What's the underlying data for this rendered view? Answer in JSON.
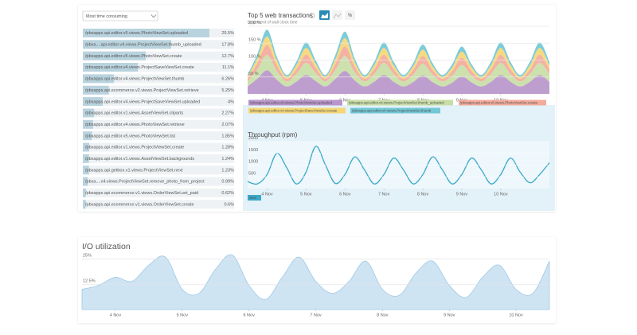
{
  "dropdown": "Most time consuming",
  "transactions": {
    "names": [
      "/pbxapps.api.editor.v5.views.PhotoViewSet.uploaded",
      "/pbxa....api.editor.v4.views.ProjectViewSet.thumb_uploaded",
      "/pbxapps.api.editor.v5.views.PhotoViewSet.create",
      "/pbxapps.api.editor.v4.views.ProjectSaveViewSet.create",
      "/pbxapps.api.editor.v4.views.ProjectViewSet.thumb",
      "/pbxapps.api.ecommerce.v2.views.ProjectViewSet.retrieve",
      "/pbxapps.api.editor.v4.views.ProjectSaveViewSet.uploaded",
      "/pbxapps.api.editor.v1.views.AssetViewSet.cliparts",
      "/pbxapps.api.editor.v4.views.PhotoViewSet.retrieve",
      "/pbxapps.api.editor.v5.views.PhotoViewSet.list",
      "/pbxapps.api.editor.v1.views.ProjectViewSet.create",
      "/pbxapps.api.editor.v1.views.AssetViewSet.backgrounds",
      "/pbxapps.api.getbox.v1.views.ProjectViewSet.next",
      "/pbxa....v4.views.ProjectViewSet.remove_photo_from_project",
      "/pbxapps.api.ecommerce.v1.views.OrderViewSet.set_paid",
      "/pbxapps.api.ecommerce.v1.views.OrderViewSet.create"
    ],
    "values": [
      25.5,
      17.8,
      12.7,
      11.1,
      6.26,
      5.25,
      4,
      2.27,
      2.07,
      1.85,
      1.28,
      1.24,
      1.23,
      0.99,
      0.62,
      0.6
    ],
    "value_labels": [
      "25.5%",
      "17.8%",
      "12.7%",
      "11.1%",
      "6.26%",
      "5.25%",
      "4%",
      "2.27%",
      "2.07%",
      "1.85%",
      "1.28%",
      "1.24%",
      "1.23%",
      "0.99%",
      "0.62%",
      "0.6%"
    ]
  },
  "chart_data": [
    {
      "type": "area",
      "stacked": true,
      "title": "Top 5 web transactions",
      "subtitle": "by percent of wall clock time",
      "x": [
        3.5,
        3.75,
        4,
        4.25,
        4.5,
        4.75,
        5,
        5.25,
        5.5,
        5.75,
        6,
        6.25,
        6.5,
        6.75,
        7,
        7.25,
        7.5,
        7.75,
        8,
        8.25,
        8.5,
        8.75,
        9,
        9.25,
        9.5,
        9.75,
        10,
        10.25,
        10.5,
        10.75,
        11,
        11.25
      ],
      "xlim": [
        3.5,
        11.25
      ],
      "xticks": [
        {
          "value": 4,
          "label": "4 Nov"
        },
        {
          "value": 5,
          "label": "5 Nov"
        },
        {
          "value": 6,
          "label": "6 Nov"
        },
        {
          "value": 7,
          "label": "7 Nov"
        },
        {
          "value": 8,
          "label": "8 Nov"
        },
        {
          "value": 9,
          "label": "9 Nov"
        },
        {
          "value": 10,
          "label": "10 Nov"
        }
      ],
      "ylim": [
        0,
        200
      ],
      "yticks": [
        {
          "value": 50,
          "label": "50 %"
        },
        {
          "value": 100,
          "label": "100 %"
        },
        {
          "value": 150,
          "label": "150 %"
        },
        {
          "value": 200,
          "label": "200 %"
        }
      ],
      "grid": true,
      "series": [
        {
          "name": "/pbxapps.api.editor.v5.views.PhotoViewSet.uploaded",
          "color": "#b995cb",
          "values": [
            22,
            45,
            70,
            42,
            22,
            36,
            56,
            38,
            22,
            44,
            68,
            40,
            22,
            36,
            56,
            36,
            22,
            35,
            54,
            35,
            22,
            33,
            52,
            34,
            22,
            36,
            56,
            36,
            22,
            36,
            56,
            36
          ]
        },
        {
          "name": "/pbxapps.api.editor.v4.views.ProjectViewSet.thumb_uploaded",
          "color": "#c8dea6",
          "values": [
            15,
            28,
            45,
            26,
            15,
            23,
            36,
            24,
            15,
            27,
            44,
            25,
            15,
            23,
            36,
            23,
            15,
            22,
            35,
            22,
            15,
            21,
            33,
            21,
            15,
            23,
            36,
            23,
            15,
            23,
            36,
            23
          ]
        },
        {
          "name": "/pbxapps.api.editor.v5.views.PhotoViewSet.create",
          "color": "#f3ab9c",
          "values": [
            8,
            18,
            30,
            17,
            8,
            14,
            24,
            15,
            8,
            17,
            29,
            16,
            8,
            14,
            24,
            14,
            8,
            14,
            23,
            14,
            8,
            13,
            22,
            13,
            8,
            14,
            24,
            14,
            8,
            14,
            24,
            14
          ]
        },
        {
          "name": "/pbxapps.api.editor.v4.views.ProjectSaveViewSet.create",
          "color": "#f6d775",
          "values": [
            6,
            15,
            25,
            14,
            6,
            12,
            20,
            12,
            6,
            14,
            24,
            13,
            6,
            12,
            20,
            12,
            6,
            11,
            19,
            11,
            6,
            11,
            18,
            11,
            6,
            12,
            20,
            12,
            6,
            12,
            20,
            12
          ]
        },
        {
          "name": "/pbxapps.api.editor.v4.views.ProjectViewSet.thumb",
          "color": "#72c8d6",
          "values": [
            5,
            12,
            20,
            11,
            5,
            10,
            16,
            10,
            5,
            12,
            19,
            11,
            5,
            10,
            16,
            10,
            5,
            9,
            15,
            9,
            5,
            9,
            15,
            9,
            5,
            10,
            16,
            10,
            5,
            10,
            16,
            10
          ]
        }
      ]
    },
    {
      "type": "line",
      "title": "Throughput (rpm)",
      "x": [
        3.5,
        3.75,
        4,
        4.25,
        4.5,
        4.75,
        5,
        5.25,
        5.5,
        5.75,
        6,
        6.25,
        6.5,
        6.75,
        7,
        7.25,
        7.5,
        7.75,
        8,
        8.25,
        8.5,
        8.75,
        9,
        9.25,
        9.5,
        9.75,
        10,
        10.25,
        10.5,
        10.75,
        11,
        11.25
      ],
      "xlim": [
        3.5,
        11.25
      ],
      "xticks": [
        {
          "value": 4,
          "label": "4 Nov"
        },
        {
          "value": 5,
          "label": "5 Nov"
        },
        {
          "value": 6,
          "label": "6 Nov"
        },
        {
          "value": 7,
          "label": "7 Nov"
        },
        {
          "value": 8,
          "label": "8 Nov"
        },
        {
          "value": 9,
          "label": "9 Nov"
        },
        {
          "value": 10,
          "label": "10 Nov"
        }
      ],
      "ylim": [
        0,
        2000
      ],
      "yticks": [
        500,
        1000,
        1500,
        2000
      ],
      "grid": true,
      "series": [
        {
          "name": "Web",
          "color": "#3aa9c9",
          "values": [
            300,
            200,
            600,
            1500,
            900,
            200,
            700,
            1800,
            1000,
            220,
            600,
            1350,
            800,
            200,
            600,
            1300,
            800,
            200,
            600,
            1350,
            800,
            200,
            600,
            1300,
            800,
            200,
            600,
            1300,
            700,
            250,
            600,
            1100
          ]
        }
      ]
    },
    {
      "type": "area",
      "title": "I/O utilization",
      "x": [
        3.5,
        3.75,
        4,
        4.25,
        4.5,
        4.75,
        5,
        5.25,
        5.5,
        5.75,
        6,
        6.25,
        6.5,
        6.75,
        7,
        7.25,
        7.5,
        7.75,
        8,
        8.25,
        8.5,
        8.75,
        9,
        9.25,
        9.5,
        9.75,
        10,
        10.25,
        10.5
      ],
      "xlim": [
        3.5,
        10.5
      ],
      "xticks": [
        {
          "value": 4,
          "label": "4 Nov"
        },
        {
          "value": 5,
          "label": "5 Nov"
        },
        {
          "value": 6,
          "label": "6 Nov"
        },
        {
          "value": 7,
          "label": "7 Nov"
        },
        {
          "value": 8,
          "label": "8 Nov"
        },
        {
          "value": 9,
          "label": "9 Nov"
        },
        {
          "value": 10,
          "label": "10 Nov"
        }
      ],
      "ylim": [
        0,
        28
      ],
      "yticks": [
        {
          "value": 12.5,
          "label": "12.5%"
        },
        {
          "value": 25,
          "label": "25%"
        }
      ],
      "grid": true,
      "series": [
        {
          "color": "#cfe4f3",
          "values": [
            10,
            12,
            16,
            14,
            22,
            26,
            10,
            8,
            20,
            27,
            12,
            5,
            16,
            26,
            14,
            8,
            14,
            24,
            10,
            7,
            18,
            24,
            12,
            6,
            16,
            22,
            10,
            8,
            24
          ]
        }
      ]
    }
  ]
}
